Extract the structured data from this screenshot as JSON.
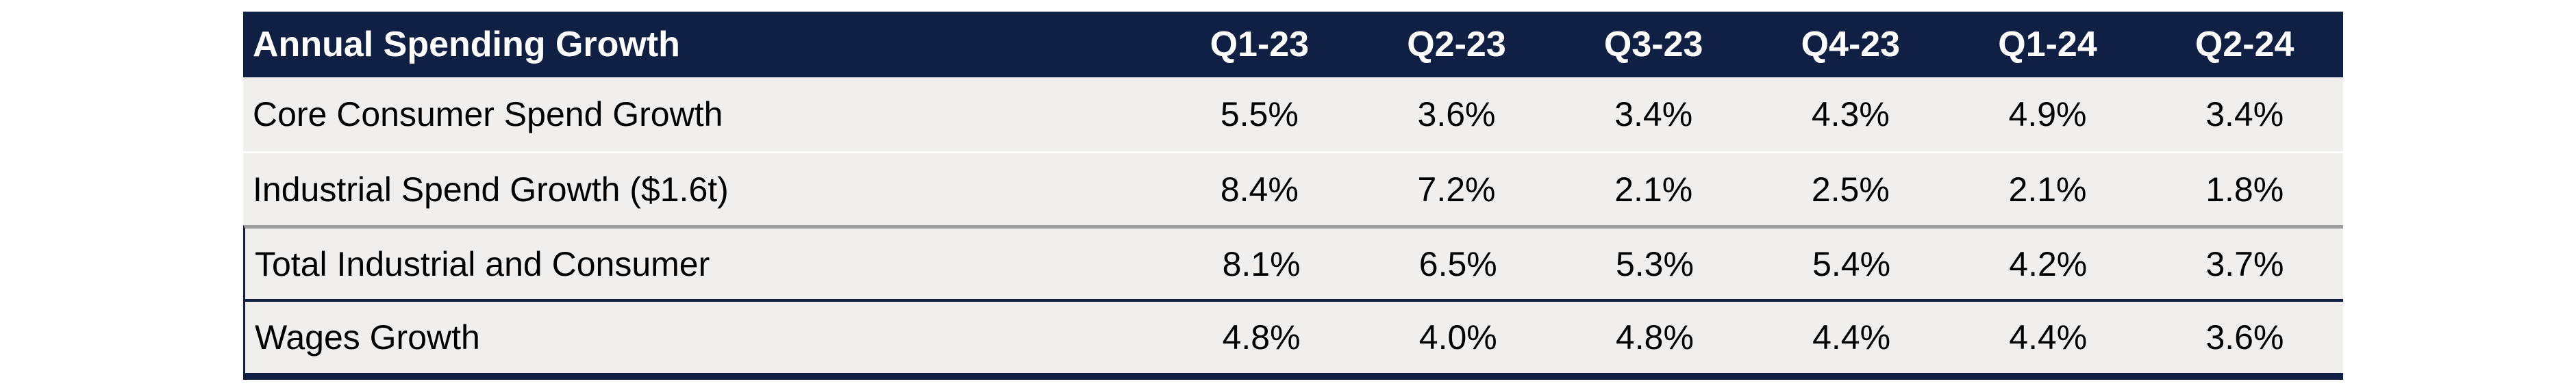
{
  "chart_data": {
    "type": "table",
    "title": "Annual Spending Growth",
    "columns": [
      "Q1-23",
      "Q2-23",
      "Q3-23",
      "Q4-23",
      "Q1-24",
      "Q2-24"
    ],
    "rows": [
      {
        "label": "Core Consumer Spend Growth",
        "values": [
          "5.5%",
          "3.6%",
          "3.4%",
          "4.3%",
          "4.9%",
          "3.4%"
        ]
      },
      {
        "label": "Industrial Spend Growth ($1.6t)",
        "values": [
          "8.4%",
          "7.2%",
          "2.1%",
          "2.5%",
          "2.1%",
          "1.8%"
        ]
      },
      {
        "label": "Total Industrial and Consumer",
        "values": [
          "8.1%",
          "6.5%",
          "5.3%",
          "5.4%",
          "4.2%",
          "3.7%"
        ]
      },
      {
        "label": "Wages Growth",
        "values": [
          "4.8%",
          "4.0%",
          "4.8%",
          "4.4%",
          "4.4%",
          "3.6%"
        ]
      }
    ],
    "legend_position": "none",
    "grid": false,
    "colors": {
      "header_bg": "#101f44",
      "header_text": "#ffffff",
      "row_bg": "#f0efee",
      "body_text": "#000000",
      "separator_light": "#ffffff",
      "separator_gray": "#9e9e9e",
      "separator_dark": "#101f44"
    }
  }
}
